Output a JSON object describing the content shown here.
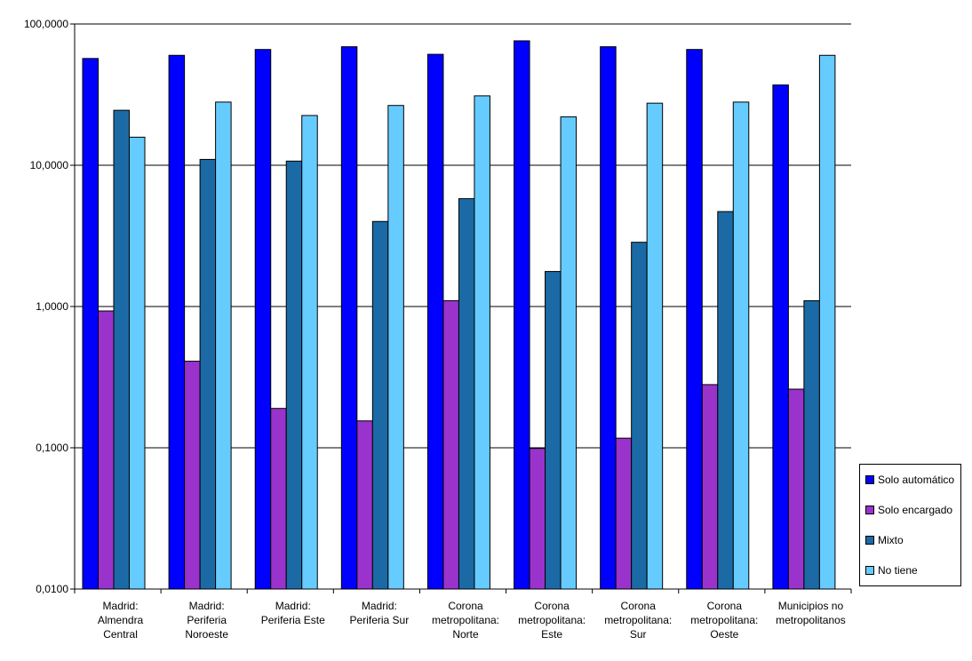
{
  "chart_data": {
    "type": "bar",
    "scale": "log",
    "ylim": [
      0.01,
      100
    ],
    "y_ticks": [
      "0,0100",
      "0,1000",
      "1,0000",
      "10,0000",
      "100,0000"
    ],
    "y_tick_values": [
      0.01,
      0.1,
      1,
      10,
      100
    ],
    "grid": true,
    "legend_position": "right",
    "categories": [
      [
        "Madrid:",
        "Almendra",
        "Central"
      ],
      [
        "Madrid:",
        "Periferia",
        "Noroeste"
      ],
      [
        "Madrid:",
        "Periferia Este"
      ],
      [
        "Madrid:",
        "Periferia Sur"
      ],
      [
        "Corona",
        "metropolitana:",
        "Norte"
      ],
      [
        "Corona",
        "metropolitana:",
        "Este"
      ],
      [
        "Corona",
        "metropolitana:",
        "Sur"
      ],
      [
        "Corona",
        "metropolitana:",
        "Oeste"
      ],
      [
        "Municipios no",
        "metropolitanos"
      ]
    ],
    "series": [
      {
        "name": "Solo automático",
        "color": "#0000ff",
        "values": [
          57.0,
          60.0,
          66.0,
          69.0,
          61.0,
          76.0,
          69.0,
          66.0,
          37.0
        ]
      },
      {
        "name": "Solo encargado",
        "color": "#9933cc",
        "values": [
          0.93,
          0.41,
          0.19,
          0.155,
          1.1,
          0.099,
          0.117,
          0.28,
          0.26
        ]
      },
      {
        "name": "Mixto",
        "color": "#1b6aa5",
        "values": [
          24.5,
          11.0,
          10.7,
          4.0,
          5.8,
          1.77,
          2.85,
          4.7,
          1.1
        ]
      },
      {
        "name": "No tiene",
        "color": "#66ccff",
        "values": [
          15.8,
          28.0,
          22.5,
          26.5,
          31.0,
          22.0,
          27.5,
          28.0,
          60.0
        ]
      }
    ]
  }
}
